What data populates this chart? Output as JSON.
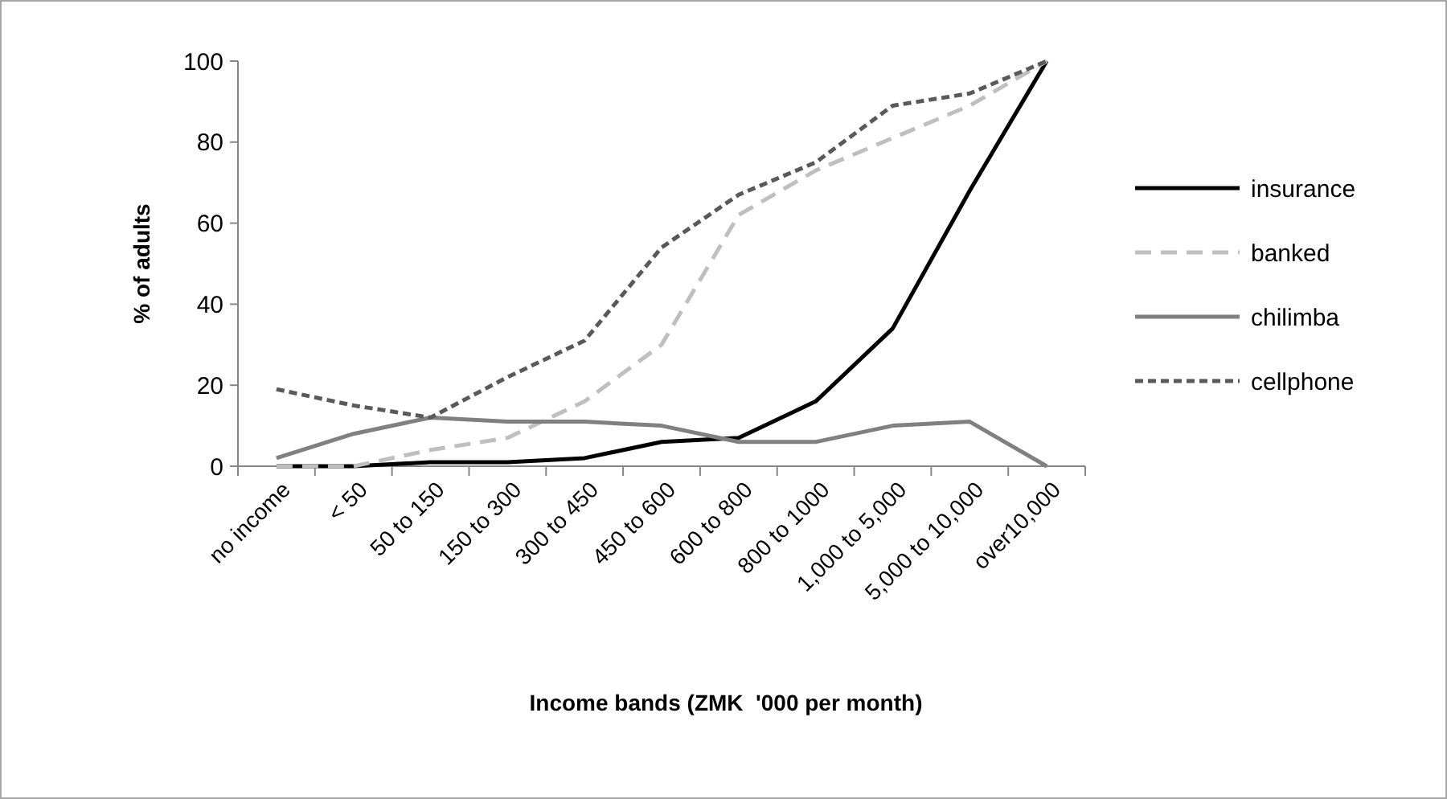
{
  "chart_data": {
    "type": "line",
    "xlabel": "Income bands (ZMK  '000 per month)",
    "ylabel": "% of adults",
    "categories": [
      "no income",
      "< 50",
      "50 to 150",
      "150 to 300",
      "300 to 450",
      "450 to 600",
      "600 to 800",
      "800 to 1000",
      "1,000 to 5,000",
      "5,000 to 10,000",
      "over10,000"
    ],
    "series": [
      {
        "name": "insurance",
        "color": "#000000",
        "line_style": "solid",
        "values": [
          0,
          0,
          1,
          1,
          2,
          6,
          7,
          16,
          34,
          68,
          100
        ]
      },
      {
        "name": "banked",
        "color": "#bfbfbf",
        "line_style": "dashed",
        "values": [
          0,
          0,
          4,
          7,
          16,
          30,
          62,
          73,
          81,
          89,
          100
        ]
      },
      {
        "name": "chilimba",
        "color": "#808080",
        "line_style": "solid",
        "values": [
          2,
          8,
          12,
          11,
          11,
          10,
          6,
          6,
          10,
          11,
          0
        ]
      },
      {
        "name": "cellphone",
        "color": "#595959",
        "line_style": "dotted",
        "values": [
          19,
          15,
          12,
          22,
          31,
          54,
          67,
          75,
          89,
          92,
          100
        ]
      }
    ],
    "ylim": [
      0,
      100
    ],
    "yticks": [
      0,
      20,
      40,
      60,
      80,
      100
    ],
    "legend": "right",
    "grid": false
  }
}
